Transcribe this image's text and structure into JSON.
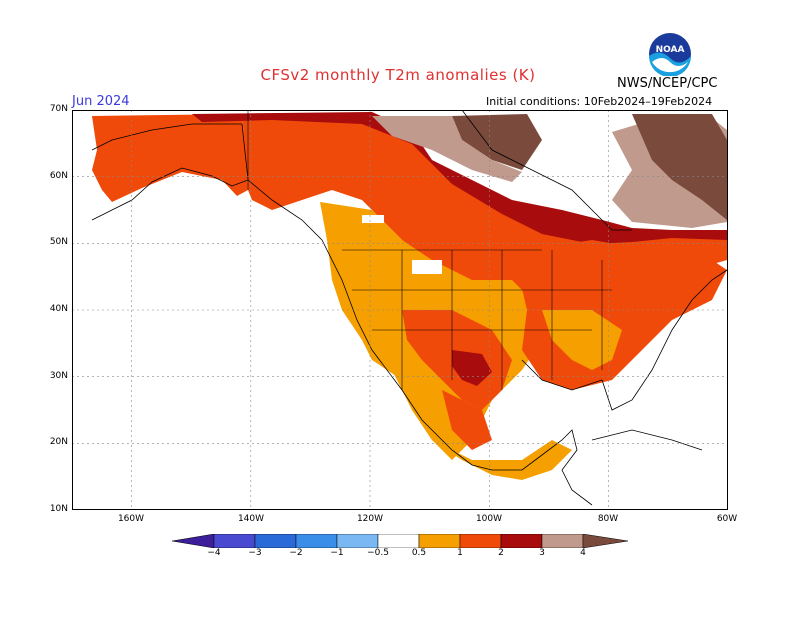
{
  "header": {
    "title": "CFSv2 monthly T2m anomalies (K)",
    "valid_month": "Jun 2024",
    "initial_conditions": "Initial conditions: 10Feb2024–19Feb2024",
    "agency": "NWS/NCEP/CPC",
    "logo_text": "NOAA"
  },
  "axes": {
    "lat_labels": [
      "70N",
      "60N",
      "50N",
      "40N",
      "30N",
      "20N",
      "10N"
    ],
    "lon_labels": [
      "160W",
      "140W",
      "120W",
      "100W",
      "80W",
      "60W"
    ]
  },
  "colorbar": {
    "labels": [
      "−4",
      "−3",
      "−2",
      "−1",
      "−0.5",
      "0.5",
      "1",
      "2",
      "3",
      "4"
    ],
    "colors": {
      "lt_m4": "#3c1e9a",
      "m4_m3": "#4a4ad0",
      "m3_m2": "#2a6ad8",
      "m2_m1": "#3a8ee8",
      "m1_m05": "#7ab8f4",
      "neutral": "#ffffff",
      "p05_1": "#f5a000",
      "p1_2": "#f04a0a",
      "p2_3": "#f52a00",
      "p3_4": "#a80c0c",
      "p4_5": "#c09a8c",
      "gt_5": "#7a4a3c"
    }
  },
  "map_data": {
    "extent": {
      "lon": [
        -170,
        -60
      ],
      "lat": [
        10,
        70
      ]
    },
    "dominant_categories": [
      "0.5 to 1",
      "1 to 2",
      "2 to 3",
      "3 to 4",
      "> 4"
    ]
  }
}
